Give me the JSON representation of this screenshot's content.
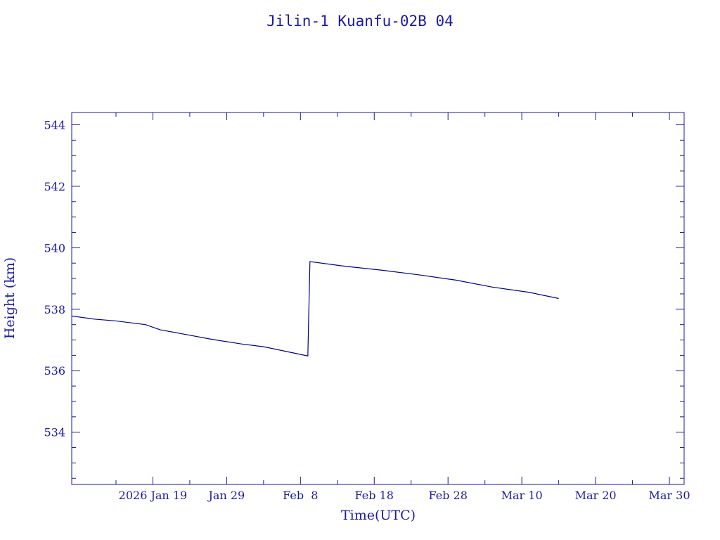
{
  "chart_data": {
    "type": "line",
    "title": "Jilin-1 Kuanfu-02B 04",
    "xlabel": "Time(UTC)",
    "ylabel": "Height (km)",
    "color": "#00008b",
    "text_color": "#1a1aa6",
    "ylim": [
      532.3,
      544.4
    ],
    "xlim": [
      "2026-01-08",
      "2026-04-01"
    ],
    "x_tick_labels": [
      "2026 Jan 19",
      "Jan 29",
      "Feb  8",
      "Feb 18",
      "Feb 28",
      "Mar 10",
      "Mar 20",
      "Mar 30"
    ],
    "x_ticks": [
      "2026-01-19",
      "2026-01-29",
      "2026-02-08",
      "2026-02-18",
      "2026-02-28",
      "2026-03-10",
      "2026-03-20",
      "2026-03-30"
    ],
    "y_ticks": [
      534,
      536,
      538,
      540,
      542,
      544
    ],
    "y_tick_labels": [
      "534",
      "536",
      "538",
      "540",
      "542",
      "544"
    ],
    "grid": false,
    "series": [
      {
        "points": [
          [
            "2026-01-08",
            537.78
          ],
          [
            "2026-01-11",
            537.68
          ],
          [
            "2026-01-14",
            537.62
          ],
          [
            "2026-01-18",
            537.5
          ],
          [
            "2026-01-20",
            537.33
          ],
          [
            "2026-01-23",
            537.2
          ],
          [
            "2026-01-27",
            537.02
          ],
          [
            "2026-01-31",
            536.87
          ],
          [
            "2026-02-03",
            536.78
          ],
          [
            "2026-02-07",
            536.58
          ],
          [
            "2026-02-09",
            536.48
          ],
          [
            "2026-02-09",
            539.55
          ],
          [
            "2026-02-14",
            539.4
          ],
          [
            "2026-02-19",
            539.27
          ],
          [
            "2026-02-24",
            539.12
          ],
          [
            "2026-03-01",
            538.95
          ],
          [
            "2026-03-06",
            538.72
          ],
          [
            "2026-03-11",
            538.55
          ],
          [
            "2026-03-15",
            538.35
          ]
        ]
      }
    ]
  }
}
